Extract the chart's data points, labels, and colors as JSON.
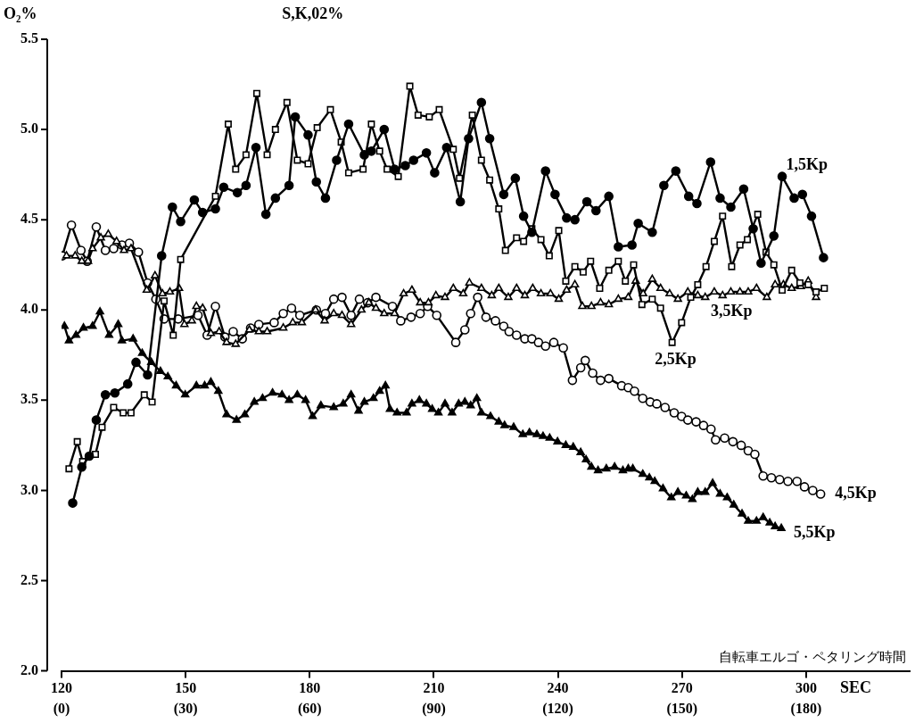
{
  "chart_data": {
    "type": "line",
    "title": "S,K,02%",
    "ylabel": "O₂%",
    "xlabel": "SEC",
    "annotations": [
      "自転車エルゴ・ペタリング時間"
    ],
    "xlim": [
      120,
      325
    ],
    "xticks": [
      120,
      150,
      180,
      210,
      240,
      270,
      300
    ],
    "x2lim": [
      0,
      205
    ],
    "x2ticks": [
      {
        "value": 0,
        "label": "(0)"
      },
      {
        "value": 30,
        "label": "(30)"
      },
      {
        "value": 60,
        "label": "(60)"
      },
      {
        "value": 90,
        "label": "(90)"
      },
      {
        "value": 120,
        "label": "(120)"
      },
      {
        "value": 150,
        "label": "(150)"
      },
      {
        "value": 180,
        "label": "(180)"
      }
    ],
    "ylim": [
      2,
      5.5
    ],
    "yticks": [
      {
        "value": 2,
        "label": "2.0"
      },
      {
        "value": 2.5,
        "label": "2.5"
      },
      {
        "value": 3,
        "label": "3.0"
      },
      {
        "value": 3.5,
        "label": "3.5"
      },
      {
        "value": 4,
        "label": "4.0"
      },
      {
        "value": 4.5,
        "label": "4.5"
      },
      {
        "value": 5,
        "label": "5.0"
      },
      {
        "value": 5.5,
        "label": "5.5"
      }
    ],
    "grid": false,
    "legend": false,
    "line_style": "solid",
    "series": [
      {
        "name": "1,5Kp",
        "color": "#000000",
        "marker": "circle",
        "x": [
          122.7,
          124.9,
          126.7,
          128.4,
          130.6,
          132.9,
          136.0,
          138.0,
          140.8,
          144.2,
          146.8,
          148.8,
          152.1,
          154.1,
          157.2,
          159.2,
          162.5,
          164.6,
          167.0,
          169.4,
          171.7,
          175.0,
          176.5,
          179.6,
          181.6,
          183.8,
          186.5,
          189.4,
          193.2,
          194.9,
          198.0,
          200.5,
          203.1,
          205.1,
          208.2,
          210.2,
          213.1,
          216.4,
          218.4,
          221.5,
          223.5,
          226.9,
          229.7,
          231.7,
          233.7,
          237.0,
          239.3,
          242.1,
          244.1,
          247.0,
          249.2,
          252.3,
          254.6,
          257.9,
          259.4,
          262.8,
          265.6,
          268.5,
          271.6,
          273.6,
          276.9,
          279.2,
          281.8,
          284.9,
          287.2,
          289.1,
          292.2,
          294.2,
          297.1,
          299.1,
          301.3,
          304.2
        ],
        "values": [
          2.93,
          3.13,
          3.19,
          3.39,
          3.53,
          3.54,
          3.59,
          3.71,
          3.64,
          4.3,
          4.57,
          4.49,
          4.61,
          4.54,
          4.56,
          4.68,
          4.65,
          4.69,
          4.9,
          4.53,
          4.62,
          4.69,
          5.07,
          4.97,
          4.71,
          4.62,
          4.83,
          5.03,
          4.86,
          4.88,
          5.0,
          4.78,
          4.8,
          4.83,
          4.87,
          4.76,
          4.9,
          4.6,
          4.95,
          5.15,
          4.95,
          4.64,
          4.73,
          4.52,
          4.43,
          4.77,
          4.64,
          4.51,
          4.5,
          4.6,
          4.55,
          4.63,
          4.35,
          4.36,
          4.48,
          4.43,
          4.69,
          4.77,
          4.63,
          4.59,
          4.82,
          4.62,
          4.57,
          4.67,
          4.45,
          4.26,
          4.41,
          4.74,
          4.62,
          4.64,
          4.52,
          4.29
        ]
      },
      {
        "name": "2,5Kp",
        "color": "#000000",
        "marker": "square",
        "x": [
          121.8,
          123.8,
          125.1,
          128.2,
          129.8,
          132.6,
          134.9,
          136.8,
          140.0,
          141.9,
          144.8,
          147.0,
          148.8,
          157.2,
          160.3,
          162.1,
          164.6,
          167.2,
          169.7,
          171.7,
          174.5,
          177.0,
          179.6,
          181.8,
          185.0,
          187.6,
          189.4,
          192.9,
          194.9,
          196.9,
          198.7,
          201.4,
          204.2,
          206.2,
          208.9,
          211.3,
          214.7,
          216.2,
          219.3,
          221.5,
          223.5,
          225.7,
          227.3,
          230.0,
          231.7,
          233.7,
          235.9,
          237.9,
          240.2,
          241.9,
          244.1,
          246.1,
          247.9,
          250.1,
          252.3,
          254.6,
          256.3,
          258.3,
          260.3,
          262.8,
          264.8,
          267.6,
          269.9,
          272.1,
          273.8,
          275.8,
          277.8,
          279.8,
          282.0,
          284.0,
          285.8,
          288.3,
          290.3,
          292.2,
          294.2,
          296.5,
          298.5,
          300.5,
          302.4,
          304.4
        ],
        "values": [
          3.12,
          3.27,
          3.16,
          3.2,
          3.35,
          3.46,
          3.43,
          3.43,
          3.53,
          3.49,
          4.05,
          3.86,
          4.28,
          4.63,
          5.03,
          4.78,
          4.86,
          5.2,
          4.86,
          5.0,
          5.15,
          4.83,
          4.81,
          5.01,
          5.11,
          4.93,
          4.76,
          4.78,
          5.03,
          4.88,
          4.78,
          4.74,
          5.24,
          5.08,
          5.07,
          5.11,
          4.89,
          4.73,
          5.08,
          4.83,
          4.72,
          4.56,
          4.33,
          4.4,
          4.38,
          4.45,
          4.39,
          4.3,
          4.44,
          4.16,
          4.24,
          4.21,
          4.27,
          4.12,
          4.22,
          4.27,
          4.16,
          4.25,
          4.03,
          4.06,
          4.01,
          3.82,
          3.93,
          4.07,
          4.14,
          4.24,
          4.38,
          4.52,
          4.24,
          4.36,
          4.39,
          4.53,
          4.32,
          4.25,
          4.11,
          4.22,
          4.15,
          4.14,
          4.1,
          4.12
        ]
      },
      {
        "name": "3,5Kp",
        "color": "#000000",
        "marker": "triangle",
        "x": [
          121.2,
          123.3,
          124.9,
          126.4,
          127.5,
          129.5,
          131.3,
          133.3,
          135.1,
          136.8,
          140.6,
          142.6,
          144.4,
          146.2,
          148.4,
          149.7,
          151.5,
          152.6,
          154.1,
          156.1,
          158.1,
          159.9,
          162.1,
          165.4,
          167.7,
          169.7,
          173.6,
          175.9,
          178.1,
          181.4,
          183.6,
          185.8,
          187.8,
          190.0,
          192.5,
          194.3,
          196.0,
          198.0,
          200.5,
          202.7,
          204.7,
          206.7,
          208.7,
          210.5,
          212.7,
          214.7,
          217.1,
          218.6,
          221.5,
          224.0,
          225.7,
          228.0,
          230.0,
          232.0,
          233.9,
          235.9,
          238.2,
          240.2,
          242.1,
          244.1,
          245.9,
          248.1,
          250.3,
          252.3,
          254.6,
          257.0,
          258.8,
          260.6,
          262.8,
          264.8,
          267.0,
          269.0,
          271.4,
          273.8,
          275.6,
          277.8,
          279.8,
          281.8,
          284.0,
          286.0,
          288.0,
          290.5,
          292.5,
          294.5,
          296.5,
          298.7,
          300.5,
          302.4
        ],
        "values": [
          4.3,
          4.3,
          4.27,
          4.27,
          4.34,
          4.4,
          4.42,
          4.38,
          4.33,
          4.34,
          4.11,
          4.19,
          4.09,
          4.1,
          4.12,
          3.92,
          3.94,
          4.02,
          4.01,
          3.87,
          3.88,
          3.82,
          3.81,
          3.89,
          3.88,
          3.88,
          3.9,
          3.93,
          3.93,
          4.0,
          3.94,
          3.98,
          3.97,
          3.92,
          4.0,
          4.04,
          4.01,
          3.98,
          3.98,
          4.09,
          4.11,
          4.04,
          4.04,
          4.08,
          4.07,
          4.12,
          4.09,
          4.15,
          4.12,
          4.08,
          4.12,
          4.07,
          4.12,
          4.08,
          4.12,
          4.09,
          4.09,
          4.06,
          4.11,
          4.14,
          4.02,
          4.02,
          4.04,
          4.03,
          4.06,
          4.07,
          4.16,
          4.09,
          4.17,
          4.12,
          4.09,
          4.06,
          4.1,
          4.08,
          4.07,
          4.1,
          4.08,
          4.1,
          4.1,
          4.1,
          4.12,
          4.07,
          4.14,
          4.14,
          4.12,
          4.13,
          4.16,
          4.07
        ]
      },
      {
        "name": "4,5Kp",
        "color": "#000000",
        "marker": "circle",
        "x": [
          120.2,
          122.4,
          124.7,
          126.2,
          128.4,
          130.6,
          132.6,
          134.6,
          136.4,
          138.6,
          140.8,
          142.8,
          144.8,
          148.2,
          153.0,
          155.2,
          157.2,
          159.5,
          161.5,
          163.7,
          165.7,
          167.7,
          171.4,
          173.6,
          175.6,
          177.6,
          181.6,
          183.8,
          185.8,
          187.8,
          190.0,
          192.0,
          194.0,
          196.0,
          200.0,
          202.0,
          204.5,
          206.7,
          208.5,
          210.7,
          215.3,
          217.5,
          218.9,
          220.6,
          222.6,
          224.9,
          226.9,
          228.2,
          230.0,
          232.0,
          233.7,
          235.3,
          237.0,
          239.0,
          241.3,
          243.5,
          245.5,
          246.6,
          248.4,
          250.3,
          252.3,
          255.4,
          257.0,
          258.5,
          260.5,
          262.3,
          263.9,
          265.9,
          268.1,
          269.9,
          271.4,
          273.4,
          275.2,
          277.0,
          278.1,
          280.3,
          282.3,
          284.3,
          286.0,
          287.6,
          289.6,
          291.6,
          293.6,
          295.6,
          297.8,
          299.6,
          301.6,
          303.5
        ],
        "values": [
          4.3,
          4.47,
          4.33,
          4.27,
          4.46,
          4.33,
          4.34,
          4.36,
          4.37,
          4.32,
          4.15,
          4.06,
          3.95,
          3.95,
          3.97,
          3.86,
          4.02,
          3.85,
          3.88,
          3.84,
          3.9,
          3.92,
          3.93,
          3.98,
          4.01,
          3.97,
          4.0,
          3.98,
          4.06,
          4.07,
          3.97,
          4.06,
          4.04,
          4.07,
          4.02,
          3.94,
          3.96,
          3.98,
          4.02,
          3.97,
          3.82,
          3.89,
          3.98,
          4.07,
          3.96,
          3.94,
          3.91,
          3.88,
          3.86,
          3.84,
          3.84,
          3.82,
          3.8,
          3.82,
          3.79,
          3.61,
          3.68,
          3.72,
          3.65,
          3.61,
          3.62,
          3.58,
          3.57,
          3.55,
          3.51,
          3.49,
          3.48,
          3.46,
          3.43,
          3.41,
          3.39,
          3.38,
          3.36,
          3.34,
          3.28,
          3.29,
          3.27,
          3.25,
          3.22,
          3.2,
          3.08,
          3.07,
          3.06,
          3.05,
          3.05,
          3.02,
          3.0,
          2.98
        ]
      },
      {
        "name": "5,5Kp",
        "color": "#000000",
        "marker": "triangle",
        "x": [
          120.7,
          121.8,
          123.5,
          125.3,
          127.5,
          129.3,
          131.5,
          133.7,
          134.6,
          137.3,
          139.5,
          141.7,
          143.9,
          145.7,
          147.7,
          149.9,
          152.6,
          154.6,
          156.1,
          157.9,
          159.9,
          162.3,
          164.3,
          166.6,
          168.6,
          171.0,
          173.3,
          175.0,
          177.0,
          179.0,
          180.7,
          182.7,
          185.8,
          188.1,
          190.0,
          191.8,
          193.2,
          195.4,
          196.9,
          198.3,
          199.4,
          201.1,
          203.4,
          204.7,
          206.5,
          208.2,
          209.6,
          211.1,
          212.7,
          214.4,
          216.0,
          217.5,
          218.9,
          220.4,
          221.5,
          223.7,
          225.7,
          227.1,
          229.3,
          231.5,
          233.1,
          234.9,
          236.4,
          238.0,
          239.9,
          241.9,
          243.7,
          245.5,
          246.8,
          248.1,
          249.7,
          251.7,
          253.7,
          255.7,
          257.0,
          258.1,
          260.5,
          262.1,
          263.4,
          265.4,
          267.4,
          269.0,
          271.0,
          272.5,
          273.8,
          275.6,
          277.4,
          279.2,
          280.9,
          282.5,
          284.5,
          286.0,
          288.0,
          289.6,
          291.2,
          292.5,
          294.0
        ],
        "values": [
          3.91,
          3.83,
          3.86,
          3.9,
          3.91,
          3.99,
          3.86,
          3.92,
          3.83,
          3.84,
          3.76,
          3.71,
          3.66,
          3.63,
          3.58,
          3.53,
          3.58,
          3.58,
          3.6,
          3.55,
          3.42,
          3.39,
          3.42,
          3.49,
          3.51,
          3.54,
          3.53,
          3.5,
          3.53,
          3.5,
          3.41,
          3.47,
          3.46,
          3.48,
          3.53,
          3.44,
          3.49,
          3.51,
          3.55,
          3.58,
          3.45,
          3.43,
          3.43,
          3.48,
          3.5,
          3.48,
          3.45,
          3.43,
          3.48,
          3.43,
          3.48,
          3.49,
          3.47,
          3.51,
          3.43,
          3.41,
          3.38,
          3.36,
          3.35,
          3.31,
          3.32,
          3.31,
          3.3,
          3.29,
          3.27,
          3.25,
          3.24,
          3.21,
          3.17,
          3.13,
          3.11,
          3.12,
          3.13,
          3.11,
          3.12,
          3.12,
          3.09,
          3.07,
          3.05,
          3.01,
          2.96,
          2.99,
          2.97,
          2.95,
          2.99,
          2.99,
          3.04,
          2.98,
          2.96,
          2.92,
          2.87,
          2.83,
          2.83,
          2.85,
          2.82,
          2.8,
          2.79
        ]
      }
    ]
  }
}
